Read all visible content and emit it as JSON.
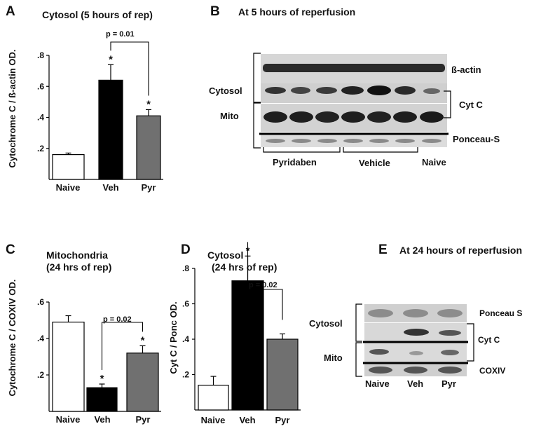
{
  "panels": {
    "A": {
      "letter": "A",
      "title": "Cytosol (5 hours of rep)",
      "p_label": "p = 0.01",
      "star": "*"
    },
    "B": {
      "letter": "B",
      "title": "At 5 hours of reperfusion",
      "labels": {
        "beta_actin": "ß-actin",
        "cytosol": "Cytosol",
        "mito": "Mito",
        "cytc": "Cyt C",
        "ponceau": "Ponceau-S",
        "pyridaben": "Pyridaben",
        "vehicle": "Vehicle",
        "naive": "Naive"
      }
    },
    "C": {
      "letter": "C",
      "title_line1": "Mitochondria",
      "title_line2": "(24 hrs of rep)",
      "p_label": "p = 0.02",
      "star": "*"
    },
    "D": {
      "letter": "D",
      "title_line1": "Cytosol",
      "title_line2": "(24 hrs of rep)",
      "p_label": "p = 0.02",
      "star": "*"
    },
    "E": {
      "letter": "E",
      "title": "At 24 hours of reperfusion",
      "labels": {
        "ponceau": "Ponceau S",
        "cytosol": "Cytosol",
        "mito": "Mito",
        "cytc": "Cyt C",
        "coxiv": "COXIV",
        "naive": "Naive",
        "veh": "Veh",
        "pyr": "Pyr"
      }
    }
  },
  "chart_data": [
    {
      "id": "A",
      "type": "bar",
      "categories": [
        "Naive",
        "Veh",
        "Pyr"
      ],
      "values": [
        0.16,
        0.64,
        0.41
      ],
      "errors": [
        0.01,
        0.1,
        0.04
      ],
      "colors": [
        "#ffffff",
        "#000000",
        "#707070"
      ],
      "ylabel": "Cytochrome C / ß-actin OD.",
      "ylim": [
        0,
        0.8
      ],
      "yticks": [
        0.2,
        0.4,
        0.6,
        0.8
      ],
      "ytick_labels": [
        ".2",
        ".4",
        ".6",
        ".8"
      ],
      "stars": [
        false,
        true,
        true
      ]
    },
    {
      "id": "C",
      "type": "bar",
      "categories": [
        "Naive",
        "Veh",
        "Pyr"
      ],
      "values": [
        0.49,
        0.13,
        0.32
      ],
      "errors": [
        0.035,
        0.02,
        0.04
      ],
      "colors": [
        "#ffffff",
        "#000000",
        "#707070"
      ],
      "ylabel": "Cytochrome C / COXIV OD.",
      "ylim": [
        0,
        0.6
      ],
      "yticks": [
        0.2,
        0.4,
        0.6
      ],
      "ytick_labels": [
        ".2",
        ".4",
        ".6"
      ],
      "stars": [
        false,
        true,
        true
      ]
    },
    {
      "id": "D",
      "type": "bar",
      "categories": [
        "Naive",
        "Veh",
        "Pyr"
      ],
      "values": [
        0.14,
        0.73,
        0.4
      ],
      "errors": [
        0.05,
        0.14,
        0.03
      ],
      "colors": [
        "#ffffff",
        "#000000",
        "#707070"
      ],
      "ylabel": "Cyt C / Ponc OD.",
      "ylim": [
        0,
        0.8
      ],
      "yticks": [
        0.2,
        0.4,
        0.6,
        0.8
      ],
      "ytick_labels": [
        ".2",
        ".4",
        ".6",
        ".8"
      ],
      "stars": [
        false,
        true,
        false
      ]
    }
  ]
}
